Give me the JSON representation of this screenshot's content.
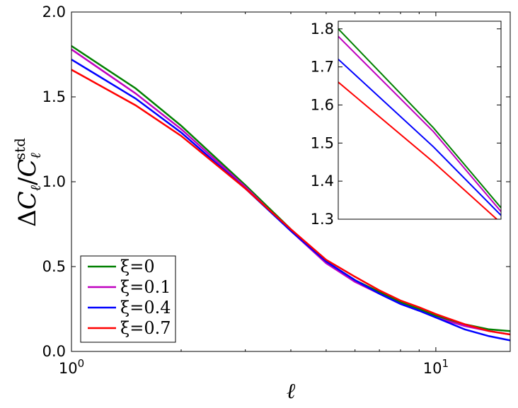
{
  "chart_data": [
    {
      "type": "line",
      "xscale": "log",
      "xlim": [
        1,
        16
      ],
      "ylim": [
        0.0,
        2.0
      ],
      "xlabel": "ℓ",
      "ylabel": "ΔC_ℓ/C_ℓ^std",
      "x_ticks": [
        {
          "value": 1,
          "base": "10",
          "exp": "0"
        },
        {
          "value": 10,
          "base": "10",
          "exp": "1"
        }
      ],
      "y_ticks": [
        "0.0",
        "0.5",
        "1.0",
        "1.5",
        "2.0"
      ],
      "legend_position": "lower-left",
      "x": [
        1,
        1.5,
        2,
        3,
        4,
        5,
        6,
        7,
        8,
        9,
        10,
        12,
        14,
        16
      ],
      "series": [
        {
          "name": "ξ=0",
          "color": "#008000",
          "values": [
            1.8,
            1.55,
            1.33,
            0.98,
            0.72,
            0.53,
            0.42,
            0.35,
            0.29,
            0.25,
            0.21,
            0.16,
            0.13,
            0.12
          ]
        },
        {
          "name": "ξ=0.1",
          "color": "#bf00bf",
          "values": [
            1.78,
            1.52,
            1.31,
            0.97,
            0.71,
            0.52,
            0.41,
            0.34,
            0.28,
            0.24,
            0.2,
            0.15,
            0.12,
            0.1
          ]
        },
        {
          "name": "ξ=0.4",
          "color": "#0000ff",
          "values": [
            1.72,
            1.49,
            1.29,
            0.96,
            0.71,
            0.53,
            0.42,
            0.34,
            0.28,
            0.24,
            0.2,
            0.13,
            0.09,
            0.065
          ]
        },
        {
          "name": "ξ=0.7",
          "color": "#ff0000",
          "values": [
            1.66,
            1.45,
            1.27,
            0.96,
            0.72,
            0.54,
            0.44,
            0.36,
            0.3,
            0.26,
            0.22,
            0.16,
            0.12,
            0.1
          ]
        }
      ]
    },
    {
      "type": "line",
      "xscale": "log",
      "xlim": [
        1,
        16
      ],
      "ylim": [
        1.3,
        1.82
      ],
      "y_ticks": [
        "1.3",
        "1.4",
        "1.5",
        "1.6",
        "1.7",
        "1.8"
      ],
      "x": [
        1,
        1.5,
        2
      ],
      "series": [
        {
          "color": "#008000",
          "values": [
            1.8,
            1.54,
            1.33
          ]
        },
        {
          "color": "#bf00bf",
          "values": [
            1.78,
            1.53,
            1.32
          ]
        },
        {
          "color": "#0000ff",
          "values": [
            1.72,
            1.49,
            1.31
          ]
        },
        {
          "color": "#ff0000",
          "values": [
            1.66,
            1.45,
            1.29
          ]
        }
      ]
    }
  ]
}
